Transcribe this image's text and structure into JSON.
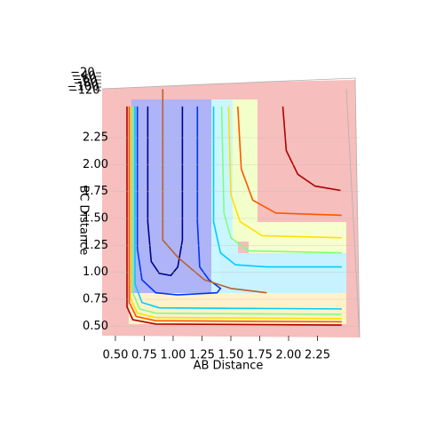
{
  "chart_data": {
    "type": "contour3d",
    "xlabel": "AB Distance",
    "ylabel": "BC Distance",
    "xlim": [
      0.385,
      2.5
    ],
    "ylim": [
      0.42,
      2.58
    ],
    "zlim": [
      -130,
      -10
    ],
    "xticks": [
      {
        "value": 0.5,
        "label": "0.50"
      },
      {
        "value": 0.75,
        "label": "0.75"
      },
      {
        "value": 1.0,
        "label": "1.00"
      },
      {
        "value": 1.25,
        "label": "1.25"
      },
      {
        "value": 1.5,
        "label": "1.50"
      },
      {
        "value": 1.75,
        "label": "1.75"
      },
      {
        "value": 2.0,
        "label": "2.00"
      },
      {
        "value": 2.25,
        "label": "2.25"
      }
    ],
    "yticks": [
      {
        "value": 0.5,
        "label": "0.50"
      },
      {
        "value": 0.75,
        "label": "0.75"
      },
      {
        "value": 1.0,
        "label": "1.00"
      },
      {
        "value": 1.25,
        "label": "1.25"
      },
      {
        "value": 1.5,
        "label": "1.50"
      },
      {
        "value": 1.75,
        "label": "1.75"
      },
      {
        "value": 2.0,
        "label": "2.00"
      },
      {
        "value": 2.25,
        "label": "2.25"
      }
    ],
    "zticks": [
      {
        "value": -20,
        "label": "−20"
      },
      {
        "value": -40,
        "label": "−40"
      },
      {
        "value": -60,
        "label": "−60"
      },
      {
        "value": -80,
        "label": "−80"
      },
      {
        "value": -100,
        "label": "−100"
      },
      {
        "value": -120,
        "label": "−120"
      }
    ],
    "series": [
      {
        "color": "#00008b",
        "x": [
          0.78,
          0.78,
          0.81,
          0.88,
          0.98,
          1.04,
          1.08,
          1.08
        ],
        "y": [
          2.54,
          1.47,
          1.1,
          0.99,
          0.97,
          1.05,
          1.3,
          2.54
        ]
      },
      {
        "color": "#0033ff",
        "x": [
          0.69,
          0.69,
          0.73,
          0.85,
          1.04,
          1.38,
          1.41,
          1.31,
          1.23,
          1.21,
          1.21
        ],
        "y": [
          2.54,
          1.22,
          0.93,
          0.81,
          0.79,
          0.81,
          0.85,
          0.93,
          1.05,
          1.47,
          2.54
        ]
      },
      {
        "color": "#00ccff",
        "x": [
          0.67,
          0.67,
          0.73,
          0.88,
          2.46,
          null,
          1.35,
          1.35,
          1.41,
          1.54,
          1.81,
          2.46
        ],
        "y": [
          2.54,
          0.89,
          0.72,
          0.67,
          0.66,
          null,
          2.54,
          1.47,
          1.18,
          1.07,
          1.05,
          1.05
        ]
      },
      {
        "color": "#7fff7f",
        "x": [
          0.65,
          0.65,
          0.71,
          0.85,
          2.46,
          null,
          1.42,
          1.44,
          1.5,
          1.65,
          2.46
        ],
        "y": [
          2.54,
          0.81,
          0.66,
          0.62,
          0.61,
          null,
          2.54,
          1.55,
          1.32,
          1.2,
          1.18
        ]
      },
      {
        "color": "#ffe000",
        "x": [
          0.63,
          0.63,
          0.69,
          0.85,
          2.46,
          null,
          1.48,
          1.5,
          1.58,
          1.77,
          2.46
        ],
        "y": [
          2.54,
          0.76,
          0.62,
          0.58,
          0.57,
          null,
          2.54,
          1.72,
          1.47,
          1.34,
          1.32
        ]
      },
      {
        "color": "#ff5500",
        "x": [
          0.62,
          0.62,
          0.68,
          0.85,
          2.46,
          null,
          1.56,
          1.59,
          1.69,
          1.89,
          2.46
        ],
        "y": [
          2.54,
          0.72,
          0.59,
          0.55,
          0.54,
          null,
          2.54,
          1.96,
          1.67,
          1.55,
          1.53
        ]
      },
      {
        "color": "#b00000",
        "x": [
          0.6,
          0.6,
          0.65,
          0.85,
          2.46,
          null,
          1.95,
          1.98,
          2.08,
          2.23,
          2.45
        ],
        "y": [
          2.54,
          0.68,
          0.56,
          0.52,
          0.51,
          null,
          2.54,
          2.13,
          1.91,
          1.8,
          1.76
        ]
      },
      {
        "color": "#b8602e",
        "x": [
          0.91,
          0.91,
          1.04,
          1.27,
          1.5,
          1.81
        ],
        "y": [
          2.7,
          1.3,
          1.14,
          0.93,
          0.85,
          0.81
        ]
      }
    ]
  }
}
